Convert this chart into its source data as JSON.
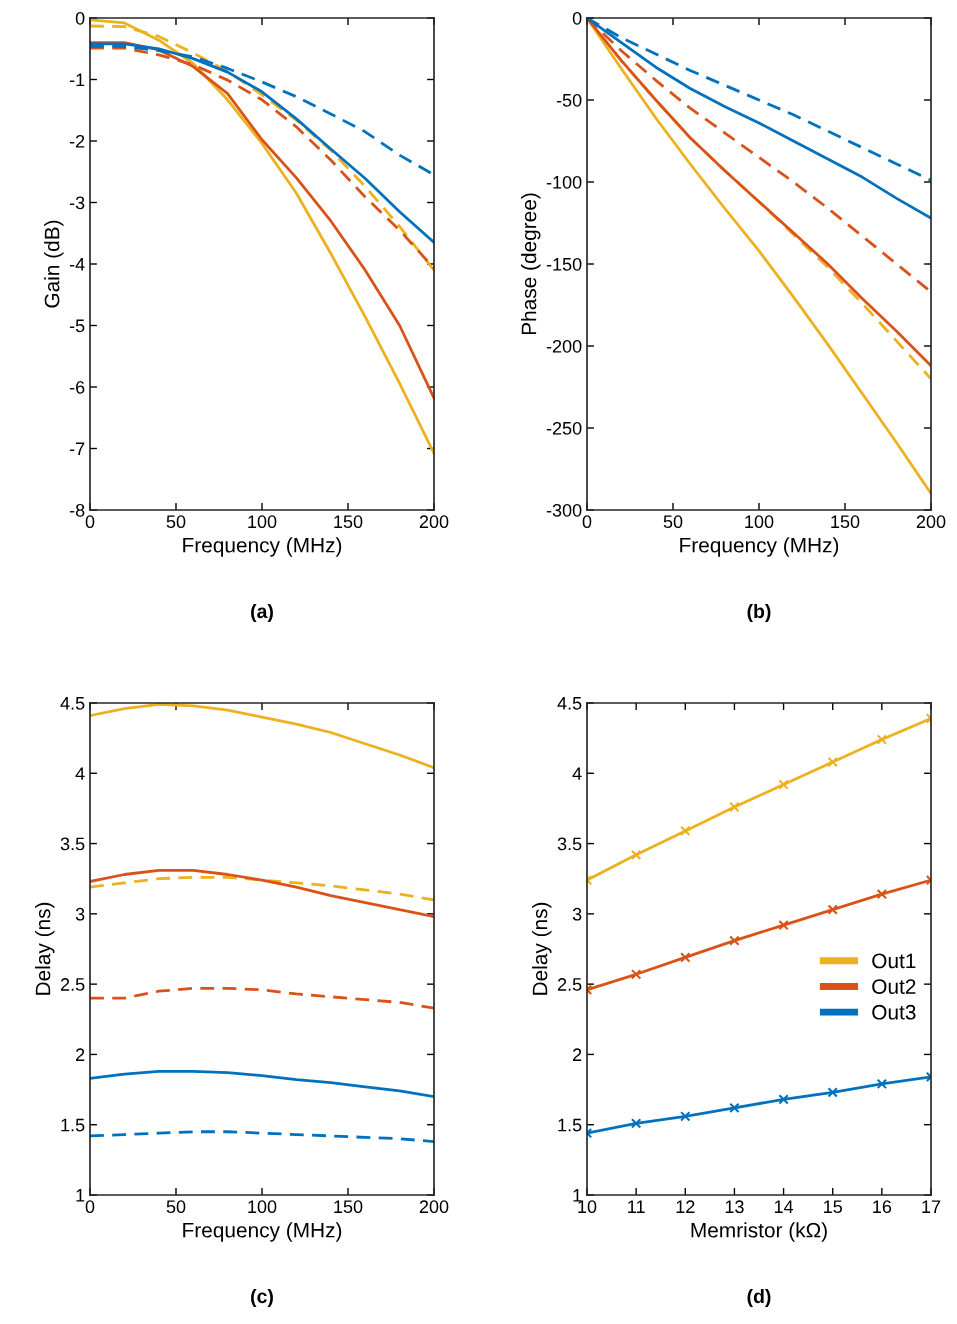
{
  "chart_data": [
    {
      "type": "line",
      "xlabel": "Frequency (MHz)",
      "ylabel": "Gain (dB)",
      "annotations": [
        "(a)"
      ],
      "x": [
        0,
        20,
        40,
        60,
        80,
        100,
        120,
        140,
        160,
        180,
        200
      ],
      "xlim": [
        0,
        200
      ],
      "xticks": [
        0,
        50,
        100,
        150,
        200
      ],
      "ylim": [
        -8,
        0
      ],
      "yticks": [
        -8,
        -7,
        -6,
        -5,
        -4,
        -3,
        -2,
        -1,
        0
      ],
      "grid": false,
      "legend": false,
      "series": [
        {
          "color": "#edb120",
          "line_style": "solid",
          "values": [
            -0.03,
            -0.08,
            -0.36,
            -0.74,
            -1.33,
            -2.04,
            -2.85,
            -3.83,
            -4.86,
            -5.94,
            -7.08
          ]
        },
        {
          "color": "#edb120",
          "line_style": "dashed",
          "values": [
            -0.13,
            -0.14,
            -0.3,
            -0.57,
            -0.87,
            -1.25,
            -1.66,
            -2.15,
            -2.74,
            -3.39,
            -4.1
          ]
        },
        {
          "color": "#d95319",
          "line_style": "solid",
          "values": [
            -0.4,
            -0.4,
            -0.52,
            -0.79,
            -1.23,
            -1.98,
            -2.6,
            -3.3,
            -4.1,
            -5.0,
            -6.18
          ]
        },
        {
          "color": "#d95319",
          "line_style": "dashed",
          "values": [
            -0.49,
            -0.49,
            -0.6,
            -0.76,
            -1.01,
            -1.33,
            -1.77,
            -2.31,
            -2.91,
            -3.45,
            -4.07
          ]
        },
        {
          "color": "#0072bd",
          "line_style": "solid",
          "values": [
            -0.42,
            -0.42,
            -0.5,
            -0.66,
            -0.88,
            -1.2,
            -1.64,
            -2.13,
            -2.61,
            -3.15,
            -3.65
          ]
        },
        {
          "color": "#0072bd",
          "line_style": "dashed",
          "values": [
            -0.46,
            -0.46,
            -0.53,
            -0.63,
            -0.82,
            -1.04,
            -1.28,
            -1.56,
            -1.85,
            -2.23,
            -2.55
          ]
        }
      ]
    },
    {
      "type": "line",
      "xlabel": "Frequency (MHz)",
      "ylabel": "Phase (degree)",
      "annotations": [
        "(b)"
      ],
      "x": [
        0,
        20,
        40,
        60,
        80,
        100,
        120,
        140,
        160,
        180,
        200
      ],
      "xlim": [
        0,
        200
      ],
      "xticks": [
        0,
        50,
        100,
        150,
        200
      ],
      "ylim": [
        -300,
        0
      ],
      "yticks": [
        -300,
        -250,
        -200,
        -150,
        -100,
        -50,
        0
      ],
      "grid": false,
      "legend": false,
      "series": [
        {
          "color": "#edb120",
          "line_style": "solid",
          "values": [
            0,
            -31,
            -61,
            -89,
            -116,
            -142,
            -170,
            -199,
            -229,
            -259,
            -290
          ]
        },
        {
          "color": "#edb120",
          "line_style": "dashed",
          "values": [
            0,
            -26,
            -50,
            -73,
            -93,
            -112,
            -132,
            -152,
            -174,
            -197,
            -220
          ]
        },
        {
          "color": "#d95319",
          "line_style": "solid",
          "values": [
            0,
            -26,
            -50,
            -73,
            -93,
            -112,
            -131,
            -150,
            -171,
            -191,
            -212
          ]
        },
        {
          "color": "#d95319",
          "line_style": "dashed",
          "values": [
            0,
            -20,
            -38,
            -55,
            -70,
            -85,
            -100,
            -116,
            -133,
            -150,
            -167
          ]
        },
        {
          "color": "#0072bd",
          "line_style": "solid",
          "values": [
            0,
            -15,
            -30,
            -43,
            -54,
            -64,
            -75,
            -86,
            -97,
            -110,
            -122
          ]
        },
        {
          "color": "#0072bd",
          "line_style": "dashed",
          "values": [
            0,
            -12,
            -22,
            -32,
            -41,
            -50,
            -59,
            -69,
            -79,
            -89,
            -99
          ]
        }
      ]
    },
    {
      "type": "line",
      "xlabel": "Frequency (MHz)",
      "ylabel": "Delay (ns)",
      "annotations": [
        "(c)"
      ],
      "x": [
        0,
        20,
        40,
        60,
        80,
        100,
        120,
        140,
        160,
        180,
        200
      ],
      "xlim": [
        0,
        200
      ],
      "xticks": [
        0,
        50,
        100,
        150,
        200
      ],
      "ylim": [
        1,
        4.5
      ],
      "yticks": [
        1,
        1.5,
        2,
        2.5,
        3,
        3.5,
        4,
        4.5
      ],
      "grid": false,
      "legend": false,
      "series": [
        {
          "color": "#edb120",
          "line_style": "solid",
          "values": [
            4.41,
            4.46,
            4.49,
            4.48,
            4.45,
            4.4,
            4.35,
            4.29,
            4.21,
            4.13,
            4.04
          ]
        },
        {
          "color": "#edb120",
          "line_style": "dashed",
          "values": [
            3.19,
            3.22,
            3.25,
            3.26,
            3.26,
            3.24,
            3.22,
            3.2,
            3.17,
            3.14,
            3.1
          ]
        },
        {
          "color": "#d95319",
          "line_style": "solid",
          "values": [
            3.23,
            3.28,
            3.31,
            3.31,
            3.28,
            3.24,
            3.19,
            3.13,
            3.08,
            3.03,
            2.98
          ]
        },
        {
          "color": "#d95319",
          "line_style": "dashed",
          "values": [
            2.4,
            2.4,
            2.45,
            2.47,
            2.47,
            2.46,
            2.43,
            2.41,
            2.39,
            2.37,
            2.33
          ]
        },
        {
          "color": "#0072bd",
          "line_style": "solid",
          "values": [
            1.83,
            1.86,
            1.88,
            1.88,
            1.87,
            1.85,
            1.82,
            1.8,
            1.77,
            1.74,
            1.7
          ]
        },
        {
          "color": "#0072bd",
          "line_style": "dashed",
          "values": [
            1.42,
            1.43,
            1.44,
            1.45,
            1.45,
            1.44,
            1.43,
            1.42,
            1.41,
            1.4,
            1.38
          ]
        }
      ]
    },
    {
      "type": "line",
      "xlabel": "Memristor (kΩ)",
      "ylabel": "Delay (ns)",
      "annotations": [
        "(d)"
      ],
      "x": [
        10,
        11,
        12,
        13,
        14,
        15,
        16,
        17
      ],
      "xlim": [
        10,
        17
      ],
      "xticks": [
        10,
        11,
        12,
        13,
        14,
        15,
        16,
        17
      ],
      "ylim": [
        1,
        4.5
      ],
      "yticks": [
        1,
        1.5,
        2,
        2.5,
        3,
        3.5,
        4,
        4.5
      ],
      "grid": false,
      "legend": "right",
      "marker": "cross",
      "series": [
        {
          "name": "Out1",
          "color": "#edb120",
          "line_style": "solid",
          "values": [
            3.24,
            3.42,
            3.59,
            3.76,
            3.92,
            4.08,
            4.24,
            4.39
          ]
        },
        {
          "name": "Out2",
          "color": "#d95319",
          "line_style": "solid",
          "values": [
            2.46,
            2.57,
            2.69,
            2.81,
            2.92,
            3.03,
            3.14,
            3.24
          ]
        },
        {
          "name": "Out3",
          "color": "#0072bd",
          "line_style": "solid",
          "values": [
            1.44,
            1.51,
            1.56,
            1.62,
            1.68,
            1.73,
            1.79,
            1.84
          ]
        }
      ]
    }
  ]
}
